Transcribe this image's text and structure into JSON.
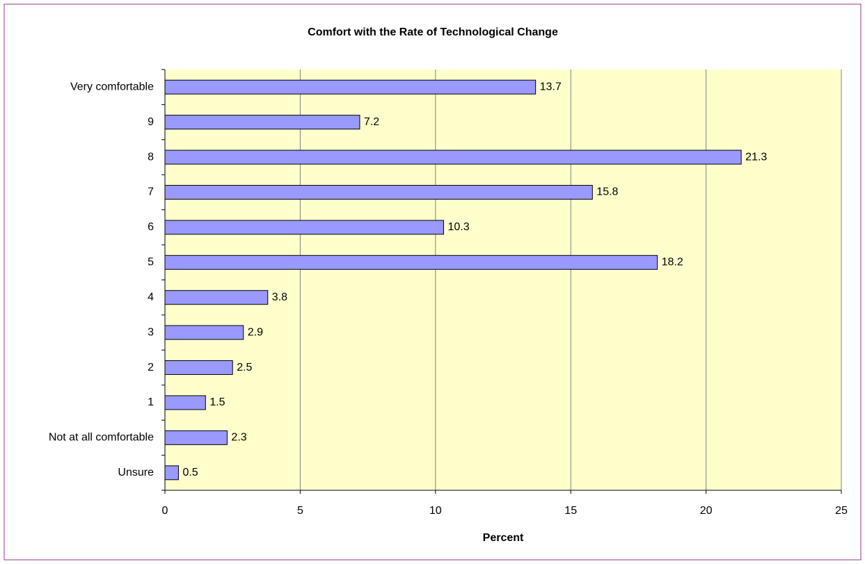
{
  "chart_data": {
    "type": "bar",
    "orientation": "horizontal",
    "title": "Comfort with the Rate of Technological Change",
    "x_label": "Percent",
    "categories": [
      "Very comfortable",
      "9",
      "8",
      "7",
      "6",
      "5",
      "4",
      "3",
      "2",
      "1",
      "Not at all comfortable",
      "Unsure"
    ],
    "values": [
      13.7,
      7.2,
      21.3,
      15.8,
      10.3,
      18.2,
      3.8,
      2.9,
      2.5,
      1.5,
      2.3,
      0.5
    ],
    "color": "#9999ff",
    "xlim": [
      0,
      25
    ],
    "xticks": [
      0,
      5,
      10,
      15,
      20,
      25
    ],
    "grid": true
  }
}
